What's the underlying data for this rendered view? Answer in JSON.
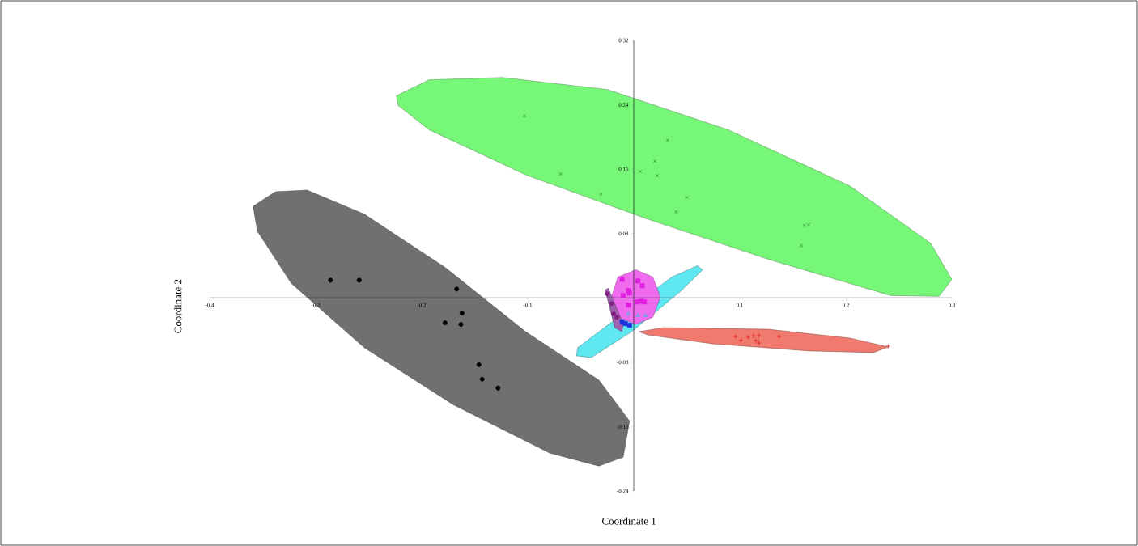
{
  "chart_data": {
    "type": "scatter",
    "xlabel": "Coordinate 1",
    "ylabel": "Coordinate 2",
    "xlim": [
      -0.4,
      0.3
    ],
    "ylim": [
      -0.24,
      0.32
    ],
    "xticks": [
      -0.4,
      -0.3,
      -0.2,
      -0.1,
      0.1,
      0.2,
      0.3
    ],
    "yticks": [
      -0.24,
      -0.16,
      -0.08,
      0.08,
      0.16,
      0.24,
      0.32
    ],
    "series": [
      {
        "type": "area",
        "color": "#77f777",
        "x": [
          -0.224,
          -0.193,
          -0.124,
          -0.025,
          0.089,
          0.204,
          0.28,
          0.3,
          0.288,
          0.242,
          0.127,
          0.013,
          -0.102,
          -0.193,
          -0.222
        ],
        "values": [
          0.251,
          0.271,
          0.274,
          0.259,
          0.209,
          0.139,
          0.068,
          0.023,
          0.002,
          0.003,
          0.048,
          0.098,
          0.153,
          0.209,
          0.239
        ]
      },
      {
        "type": "area",
        "color": "#707070",
        "x": [
          -0.359,
          -0.338,
          -0.308,
          -0.254,
          -0.178,
          -0.102,
          -0.033,
          -0.004,
          -0.01,
          -0.033,
          -0.079,
          -0.17,
          -0.254,
          -0.323,
          -0.355
        ],
        "values": [
          0.114,
          0.132,
          0.134,
          0.104,
          0.038,
          -0.042,
          -0.102,
          -0.153,
          -0.198,
          -0.209,
          -0.193,
          -0.133,
          -0.062,
          0.018,
          0.083
        ]
      },
      {
        "type": "area",
        "color": "#f07a6e",
        "x": [
          0.005,
          0.028,
          0.127,
          0.204,
          0.24,
          0.226,
          0.166,
          0.074,
          0.013
        ],
        "values": [
          -0.042,
          -0.037,
          -0.039,
          -0.05,
          -0.061,
          -0.068,
          -0.066,
          -0.057,
          -0.046
        ]
      },
      {
        "type": "area",
        "color": "#5fe8f0",
        "x": [
          -0.054,
          -0.053,
          0.036,
          0.06,
          0.065,
          0.044,
          -0.002,
          -0.04
        ],
        "values": [
          -0.072,
          -0.062,
          0.026,
          0.04,
          0.035,
          0.008,
          -0.042,
          -0.074
        ]
      },
      {
        "type": "area",
        "color": "#ef6cef",
        "x": [
          0.002,
          0.018,
          0.025,
          0.018,
          0.002,
          -0.015,
          -0.021,
          -0.015
        ],
        "values": [
          0.035,
          0.026,
          0.001,
          -0.024,
          -0.033,
          -0.024,
          0.001,
          0.026
        ]
      },
      {
        "type": "area",
        "color": "#a060b0",
        "x": [
          -0.027,
          -0.024,
          -0.01,
          -0.011,
          -0.018
        ],
        "values": [
          0.01,
          0.012,
          -0.032,
          -0.042,
          -0.037
        ]
      },
      {
        "marker": "cross",
        "color": "#2e8b2e",
        "x": [
          -0.103,
          -0.069,
          -0.031,
          0.006,
          0.02,
          0.022,
          0.032,
          0.04,
          0.05,
          0.158,
          0.161,
          0.165
        ],
        "values": [
          0.226,
          0.154,
          0.129,
          0.157,
          0.17,
          0.152,
          0.196,
          0.107,
          0.125,
          0.065,
          0.09,
          0.091
        ]
      },
      {
        "marker": "circle",
        "color": "#000000",
        "x": [
          -0.286,
          -0.259,
          -0.167,
          -0.162,
          -0.178,
          -0.163,
          -0.146,
          -0.143,
          -0.128
        ],
        "values": [
          0.022,
          0.022,
          0.011,
          -0.019,
          -0.031,
          -0.033,
          -0.083,
          -0.101,
          -0.112
        ]
      },
      {
        "marker": "plus",
        "color": "#e02020",
        "x": [
          0.096,
          0.101,
          0.108,
          0.113,
          0.115,
          0.118,
          0.118,
          0.137,
          0.24
        ],
        "values": [
          -0.048,
          -0.053,
          -0.049,
          -0.047,
          -0.053,
          -0.047,
          -0.056,
          -0.048,
          -0.06
        ]
      },
      {
        "marker": "square",
        "color": "#e020e0",
        "x": [
          -0.011,
          0.004,
          0.008,
          -0.005,
          -0.004,
          -0.01,
          0.007,
          0.01,
          -0.005,
          0.003
        ],
        "values": [
          0.023,
          0.021,
          0.015,
          0.009,
          0.006,
          0.003,
          -0.004,
          -0.005,
          -0.009,
          -0.005
        ]
      },
      {
        "marker": "triangle",
        "color": "#30c0e0",
        "x": [
          -0.005,
          0.004,
          0.011
        ],
        "values": [
          -0.02,
          -0.022,
          -0.022
        ]
      },
      {
        "marker": "circle",
        "color": "#802080",
        "x": [
          -0.025,
          -0.021,
          -0.019,
          -0.016
        ],
        "values": [
          0.005,
          -0.007,
          -0.02,
          -0.024
        ]
      },
      {
        "marker": "square",
        "color": "#2030e0",
        "x": [
          -0.011,
          -0.008,
          -0.004
        ],
        "values": [
          -0.03,
          -0.032,
          -0.034
        ]
      }
    ]
  }
}
